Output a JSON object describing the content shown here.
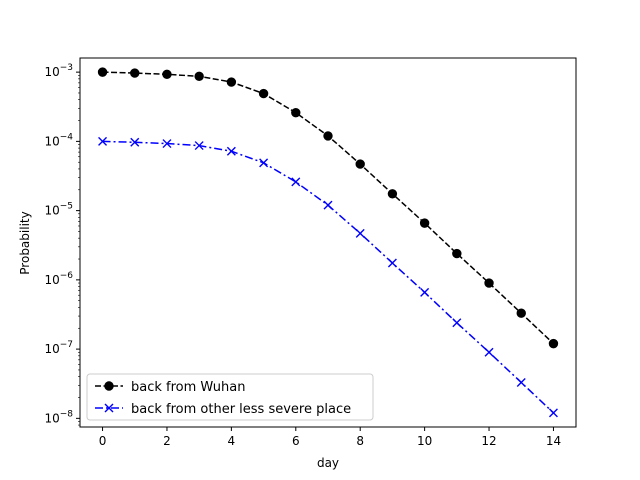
{
  "chart_data": {
    "type": "line",
    "title": "",
    "xlabel": "day",
    "ylabel": "Probability",
    "yscale": "log",
    "xlim": [
      -0.7,
      14.7
    ],
    "ylim": [
      7.5e-09,
      0.0016
    ],
    "x_ticks": [
      0,
      2,
      4,
      6,
      8,
      10,
      12,
      14
    ],
    "x_tick_labels": [
      "0",
      "2",
      "4",
      "6",
      "8",
      "10",
      "12",
      "14"
    ],
    "y_ticks": [
      {
        "value": 0.001,
        "base": "10",
        "exp": "−3"
      },
      {
        "value": 0.0001,
        "base": "10",
        "exp": "−4"
      },
      {
        "value": 1e-05,
        "base": "10",
        "exp": "−5"
      },
      {
        "value": 1e-06,
        "base": "10",
        "exp": "−6"
      },
      {
        "value": 1e-07,
        "base": "10",
        "exp": "−7"
      },
      {
        "value": 1e-08,
        "base": "10",
        "exp": "−8"
      }
    ],
    "legend_position": "lower-left",
    "x": [
      0,
      1,
      2,
      3,
      4,
      5,
      6,
      7,
      8,
      9,
      10,
      11,
      12,
      13,
      14
    ],
    "series": [
      {
        "name": "back from Wuhan",
        "color": "#000000",
        "marker": "circle",
        "linestyle": "dashed",
        "values": [
          0.001,
          0.00097,
          0.00093,
          0.00087,
          0.00072,
          0.00049,
          0.00026,
          0.00012,
          4.7e-05,
          1.75e-05,
          6.6e-06,
          2.4e-06,
          9e-07,
          3.3e-07,
          1.2e-07
        ]
      },
      {
        "name": "back from other less severe place",
        "color": "#0000ff",
        "marker": "x",
        "linestyle": "dashdot",
        "values": [
          0.0001,
          9.7e-05,
          9.3e-05,
          8.7e-05,
          7.2e-05,
          4.9e-05,
          2.6e-05,
          1.2e-05,
          4.7e-06,
          1.75e-06,
          6.6e-07,
          2.4e-07,
          9e-08,
          3.3e-08,
          1.2e-08
        ]
      }
    ]
  }
}
